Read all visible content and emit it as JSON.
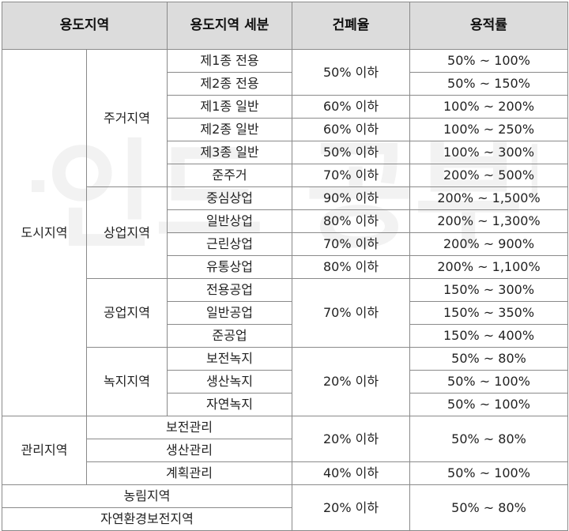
{
  "header": {
    "col1": "용도지역",
    "col2": "용도지역 세분",
    "col3": "건폐율",
    "col4": "용적률"
  },
  "watermark": {
    "text": "파인드 공부방"
  },
  "city": {
    "label": "도시지역",
    "residential": {
      "label": "주거지역",
      "rows": [
        {
          "sub": "제1종 전용",
          "far": "50% ~ 100%"
        },
        {
          "sub": "제2종 전용",
          "far": "50% ~ 150%"
        },
        {
          "sub": "제1종 일반",
          "bcr": "60% 이하",
          "far": "100% ~ 200%"
        },
        {
          "sub": "제2종 일반",
          "bcr": "60% 이하",
          "far": "100% ~ 250%"
        },
        {
          "sub": "제3종 일반",
          "bcr": "50% 이하",
          "far": "100% ~ 300%"
        },
        {
          "sub": "준주거",
          "bcr": "70% 이하",
          "far": "200% ~ 500%"
        }
      ],
      "bcr_exclusive": "50% 이하"
    },
    "commercial": {
      "label": "상업지역",
      "rows": [
        {
          "sub": "중심상업",
          "bcr": "90% 이하",
          "far": "200% ~ 1,500%"
        },
        {
          "sub": "일반상업",
          "bcr": "80% 이하",
          "far": "200% ~ 1,300%"
        },
        {
          "sub": "근린상업",
          "bcr": "70% 이하",
          "far": "200% ~ 900%"
        },
        {
          "sub": "유통상업",
          "bcr": "80% 이하",
          "far": "200% ~ 1,100%"
        }
      ]
    },
    "industrial": {
      "label": "공업지역",
      "bcr": "70% 이하",
      "rows": [
        {
          "sub": "전용공업",
          "far": "150% ~ 300%"
        },
        {
          "sub": "일반공업",
          "far": "150% ~ 350%"
        },
        {
          "sub": "준공업",
          "far": "150% ~ 400%"
        }
      ]
    },
    "green": {
      "label": "녹지지역",
      "bcr": "20% 이하",
      "rows": [
        {
          "sub": "보전녹지",
          "far": "50% ~ 80%"
        },
        {
          "sub": "생산녹지",
          "far": "50% ~ 100%"
        },
        {
          "sub": "자연녹지",
          "far": "50% ~ 100%"
        }
      ]
    }
  },
  "management": {
    "label": "관리지역",
    "rows": [
      {
        "sub": "보전관리"
      },
      {
        "sub": "생산관리"
      },
      {
        "sub": "계획관리",
        "bcr": "40% 이하",
        "far": "50% ~ 100%"
      }
    ],
    "bcr_top": "20% 이하",
    "far_top": "50% ~ 80%"
  },
  "other": {
    "rows": [
      {
        "sub": "농림지역"
      },
      {
        "sub": "자연환경보전지역"
      }
    ],
    "bcr": "20% 이하",
    "far": "50% ~ 80%"
  }
}
